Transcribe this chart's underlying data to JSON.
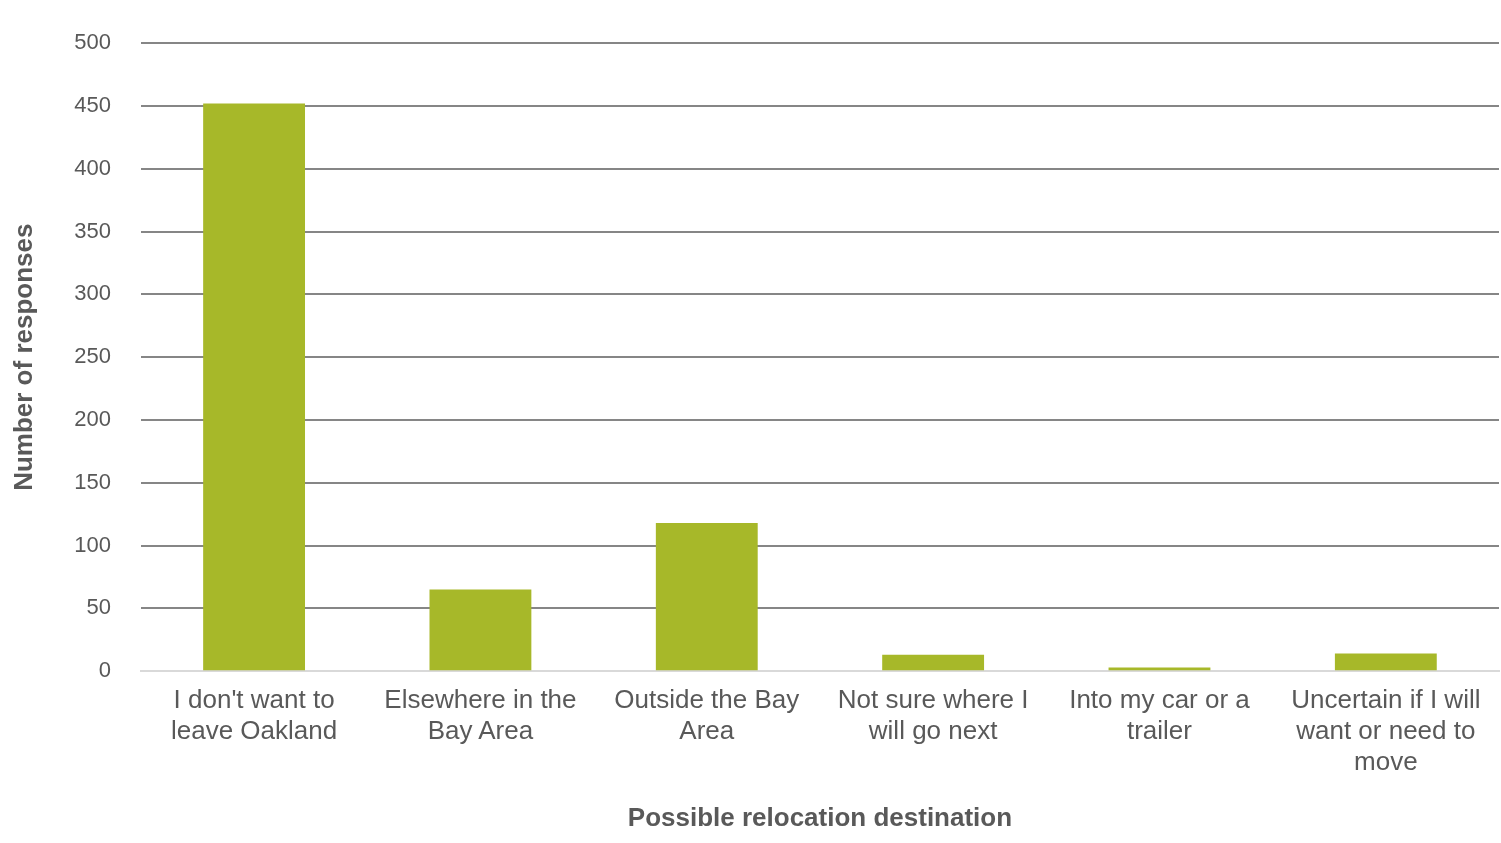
{
  "chart_data": {
    "type": "bar",
    "xlabel": "Possible relocation destination",
    "ylabel": "Number of responses",
    "categories": [
      "I don't want to leave Oakland",
      "Elsewhere in the Bay Area",
      "Outside the Bay Area",
      "Not sure where I will go next",
      "Into my car or a trailer",
      "Uncertain if I will want or need to move"
    ],
    "values": [
      452,
      65,
      118,
      13,
      3,
      14
    ],
    "color": "#a7b829",
    "ylim": [
      0,
      500
    ],
    "yticks": [
      0,
      50,
      100,
      150,
      200,
      250,
      300,
      350,
      400,
      450,
      500
    ],
    "grid": "y",
    "legend": false
  }
}
